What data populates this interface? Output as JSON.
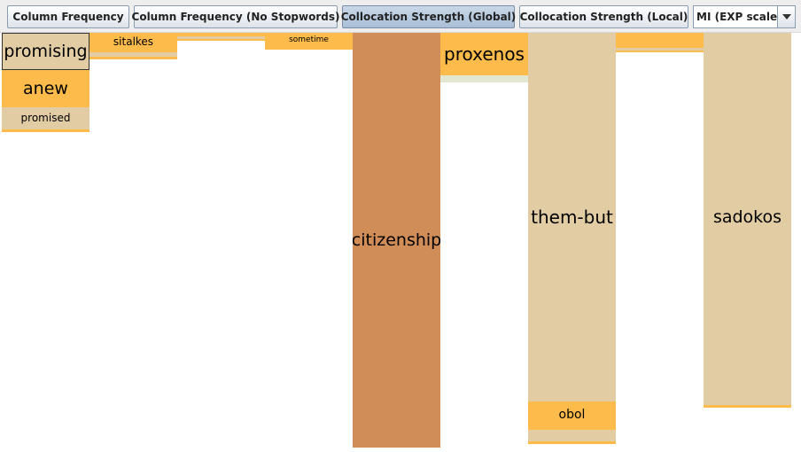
{
  "toolbar": {
    "buttons": [
      {
        "label": "Column Frequency",
        "selected": false
      },
      {
        "label": "Column Frequency (No Stopwords)",
        "selected": false
      },
      {
        "label": "Collocation Strength (Global)",
        "selected": true
      },
      {
        "label": "Collocation Strength (Local)",
        "selected": false
      }
    ],
    "scale_select": {
      "value": "MI (EXP scale)"
    }
  },
  "colors": {
    "tan": "#e1cca3",
    "orange": "#fdbb4b",
    "light_green": "#e3e7d2",
    "copper": "#d18d58"
  },
  "columns": [
    {
      "blocks": [
        {
          "label": "promising",
          "color": "tan",
          "selected": true
        },
        {
          "label": "anew",
          "color": "orange"
        },
        {
          "label": "promised",
          "color": "tan"
        },
        {
          "label": "",
          "color": "orange"
        }
      ]
    },
    {
      "blocks": [
        {
          "label": "sitalkes",
          "color": "orange"
        },
        {
          "label": "",
          "color": "tan"
        },
        {
          "label": "",
          "color": "orange"
        }
      ]
    },
    {
      "blocks": [
        {
          "label": "",
          "color": "orange"
        },
        {
          "label": "",
          "color": "tan"
        },
        {
          "label": "",
          "color": "orange"
        }
      ]
    },
    {
      "blocks": [
        {
          "label": "sometime",
          "color": "orange"
        },
        {
          "label": "",
          "color": "orange"
        }
      ]
    },
    {
      "blocks": [
        {
          "label": "citizenship",
          "color": "copper"
        }
      ]
    },
    {
      "blocks": [
        {
          "label": "proxenos",
          "color": "orange"
        },
        {
          "label": "",
          "color": "light_green"
        }
      ]
    },
    {
      "blocks": [
        {
          "label": "them-but",
          "color": "tan"
        },
        {
          "label": "obol",
          "color": "orange"
        },
        {
          "label": "",
          "color": "tan"
        },
        {
          "label": "",
          "color": "orange"
        }
      ]
    },
    {
      "blocks": [
        {
          "label": "",
          "color": "orange"
        },
        {
          "label": "",
          "color": "tan"
        },
        {
          "label": "",
          "color": "orange"
        }
      ]
    },
    {
      "blocks": [
        {
          "label": "sadokos",
          "color": "tan"
        },
        {
          "label": "",
          "color": "tan"
        },
        {
          "label": "",
          "color": "orange"
        }
      ]
    }
  ]
}
